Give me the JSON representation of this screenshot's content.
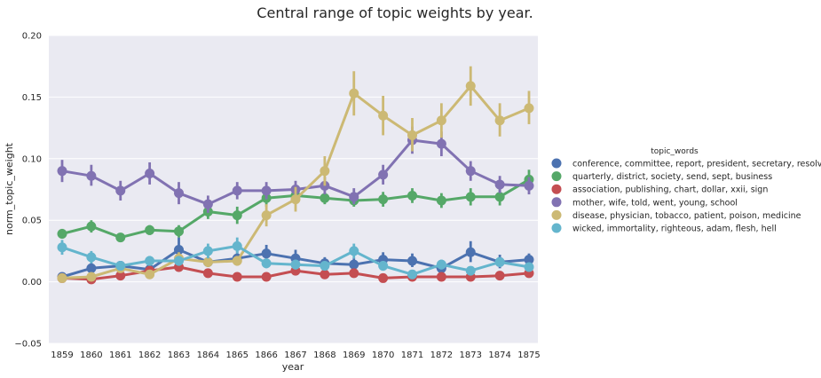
{
  "chart_data": {
    "type": "line",
    "title": "Central range of topic weights by year.",
    "xlabel": "year",
    "ylabel": "norm_topic_weight",
    "x": [
      "1859",
      "1860",
      "1861",
      "1862",
      "1863",
      "1864",
      "1865",
      "1866",
      "1867",
      "1868",
      "1869",
      "1870",
      "1871",
      "1872",
      "1873",
      "1874",
      "1875"
    ],
    "ylim": [
      -0.05,
      0.2
    ],
    "yticks": [
      "−0.05",
      "0.00",
      "0.05",
      "0.10",
      "0.15",
      "0.20"
    ],
    "ytick_values": [
      -0.05,
      0.0,
      0.05,
      0.1,
      0.15,
      0.2
    ],
    "grid": true,
    "legend_title": "topic_words",
    "legend_position": "right",
    "background": "#eaeaf2",
    "series": [
      {
        "name": "conference, committee, report, president, secretary, resolved",
        "color": "#4c72b0",
        "values": [
          0.004,
          0.011,
          0.013,
          0.01,
          0.026,
          0.016,
          0.019,
          0.023,
          0.019,
          0.015,
          0.014,
          0.018,
          0.017,
          0.011,
          0.024,
          0.016,
          0.018
        ],
        "ci": [
          [
            0.002,
            0.006
          ],
          [
            0.006,
            0.016
          ],
          [
            0.009,
            0.017
          ],
          [
            0.006,
            0.014
          ],
          [
            0.018,
            0.036
          ],
          [
            0.012,
            0.021
          ],
          [
            0.014,
            0.025
          ],
          [
            0.017,
            0.03
          ],
          [
            0.013,
            0.026
          ],
          [
            0.011,
            0.02
          ],
          [
            0.01,
            0.019
          ],
          [
            0.013,
            0.024
          ],
          [
            0.012,
            0.023
          ],
          [
            0.007,
            0.016
          ],
          [
            0.016,
            0.033
          ],
          [
            0.011,
            0.022
          ],
          [
            0.013,
            0.023
          ]
        ]
      },
      {
        "name": "quarterly, district, society, send, sept, business",
        "color": "#55a868",
        "values": [
          0.039,
          0.045,
          0.036,
          0.042,
          0.041,
          0.057,
          0.054,
          0.068,
          0.07,
          0.068,
          0.066,
          0.067,
          0.07,
          0.066,
          0.069,
          0.069,
          0.083
        ],
        "ci": [
          [
            0.035,
            0.043
          ],
          [
            0.04,
            0.05
          ],
          [
            0.033,
            0.039
          ],
          [
            0.038,
            0.046
          ],
          [
            0.036,
            0.046
          ],
          [
            0.051,
            0.063
          ],
          [
            0.047,
            0.061
          ],
          [
            0.061,
            0.075
          ],
          [
            0.064,
            0.076
          ],
          [
            0.063,
            0.073
          ],
          [
            0.061,
            0.071
          ],
          [
            0.061,
            0.073
          ],
          [
            0.064,
            0.076
          ],
          [
            0.06,
            0.072
          ],
          [
            0.062,
            0.076
          ],
          [
            0.062,
            0.076
          ],
          [
            0.075,
            0.091
          ]
        ]
      },
      {
        "name": "association, publishing, chart, dollar, xxii, sign",
        "color": "#c44e52",
        "values": [
          0.003,
          0.002,
          0.005,
          0.009,
          0.012,
          0.007,
          0.004,
          0.004,
          0.009,
          0.006,
          0.007,
          0.003,
          0.004,
          0.004,
          0.004,
          0.005,
          0.007
        ],
        "ci": [
          [
            0.002,
            0.004
          ],
          [
            0.001,
            0.003
          ],
          [
            0.003,
            0.007
          ],
          [
            0.006,
            0.013
          ],
          [
            0.009,
            0.016
          ],
          [
            0.005,
            0.009
          ],
          [
            0.003,
            0.005
          ],
          [
            0.003,
            0.005
          ],
          [
            0.007,
            0.011
          ],
          [
            0.004,
            0.008
          ],
          [
            0.005,
            0.009
          ],
          [
            0.002,
            0.004
          ],
          [
            0.003,
            0.005
          ],
          [
            0.003,
            0.005
          ],
          [
            0.003,
            0.005
          ],
          [
            0.004,
            0.006
          ],
          [
            0.005,
            0.009
          ]
        ]
      },
      {
        "name": "mother, wife, told, went, young, school",
        "color": "#8172b2",
        "values": [
          0.09,
          0.086,
          0.074,
          0.088,
          0.072,
          0.063,
          0.074,
          0.074,
          0.075,
          0.078,
          0.069,
          0.087,
          0.115,
          0.112,
          0.09,
          0.079,
          0.078
        ],
        "ci": [
          [
            0.081,
            0.099
          ],
          [
            0.078,
            0.095
          ],
          [
            0.066,
            0.082
          ],
          [
            0.079,
            0.097
          ],
          [
            0.063,
            0.081
          ],
          [
            0.056,
            0.07
          ],
          [
            0.067,
            0.081
          ],
          [
            0.067,
            0.081
          ],
          [
            0.068,
            0.082
          ],
          [
            0.071,
            0.085
          ],
          [
            0.063,
            0.076
          ],
          [
            0.079,
            0.095
          ],
          [
            0.104,
            0.126
          ],
          [
            0.102,
            0.122
          ],
          [
            0.082,
            0.098
          ],
          [
            0.072,
            0.086
          ],
          [
            0.071,
            0.085
          ]
        ]
      },
      {
        "name": "disease, physician, tobacco, patient, poison, medicine",
        "color": "#ccb974",
        "values": [
          0.003,
          0.004,
          0.011,
          0.006,
          0.019,
          0.016,
          0.017,
          0.054,
          0.067,
          0.09,
          0.153,
          0.135,
          0.119,
          0.131,
          0.159,
          0.131,
          0.141
        ],
        "ci": [
          [
            0.002,
            0.004
          ],
          [
            0.003,
            0.005
          ],
          [
            0.008,
            0.014
          ],
          [
            0.004,
            0.008
          ],
          [
            0.014,
            0.024
          ],
          [
            0.012,
            0.02
          ],
          [
            0.013,
            0.021
          ],
          [
            0.045,
            0.063
          ],
          [
            0.057,
            0.077
          ],
          [
            0.078,
            0.102
          ],
          [
            0.135,
            0.171
          ],
          [
            0.119,
            0.151
          ],
          [
            0.106,
            0.133
          ],
          [
            0.117,
            0.145
          ],
          [
            0.143,
            0.175
          ],
          [
            0.118,
            0.145
          ],
          [
            0.128,
            0.155
          ]
        ]
      },
      {
        "name": "wicked, immortality, righteous, adam, flesh, hell",
        "color": "#64b5cd",
        "values": [
          0.028,
          0.02,
          0.013,
          0.017,
          0.017,
          0.025,
          0.029,
          0.015,
          0.014,
          0.013,
          0.025,
          0.013,
          0.006,
          0.014,
          0.009,
          0.016,
          0.012
        ],
        "ci": [
          [
            0.022,
            0.034
          ],
          [
            0.015,
            0.025
          ],
          [
            0.01,
            0.016
          ],
          [
            0.013,
            0.021
          ],
          [
            0.013,
            0.021
          ],
          [
            0.019,
            0.031
          ],
          [
            0.023,
            0.036
          ],
          [
            0.011,
            0.019
          ],
          [
            0.01,
            0.018
          ],
          [
            0.01,
            0.016
          ],
          [
            0.019,
            0.031
          ],
          [
            0.009,
            0.017
          ],
          [
            0.004,
            0.008
          ],
          [
            0.01,
            0.018
          ],
          [
            0.006,
            0.012
          ],
          [
            0.012,
            0.02
          ],
          [
            0.009,
            0.015
          ]
        ]
      }
    ]
  }
}
